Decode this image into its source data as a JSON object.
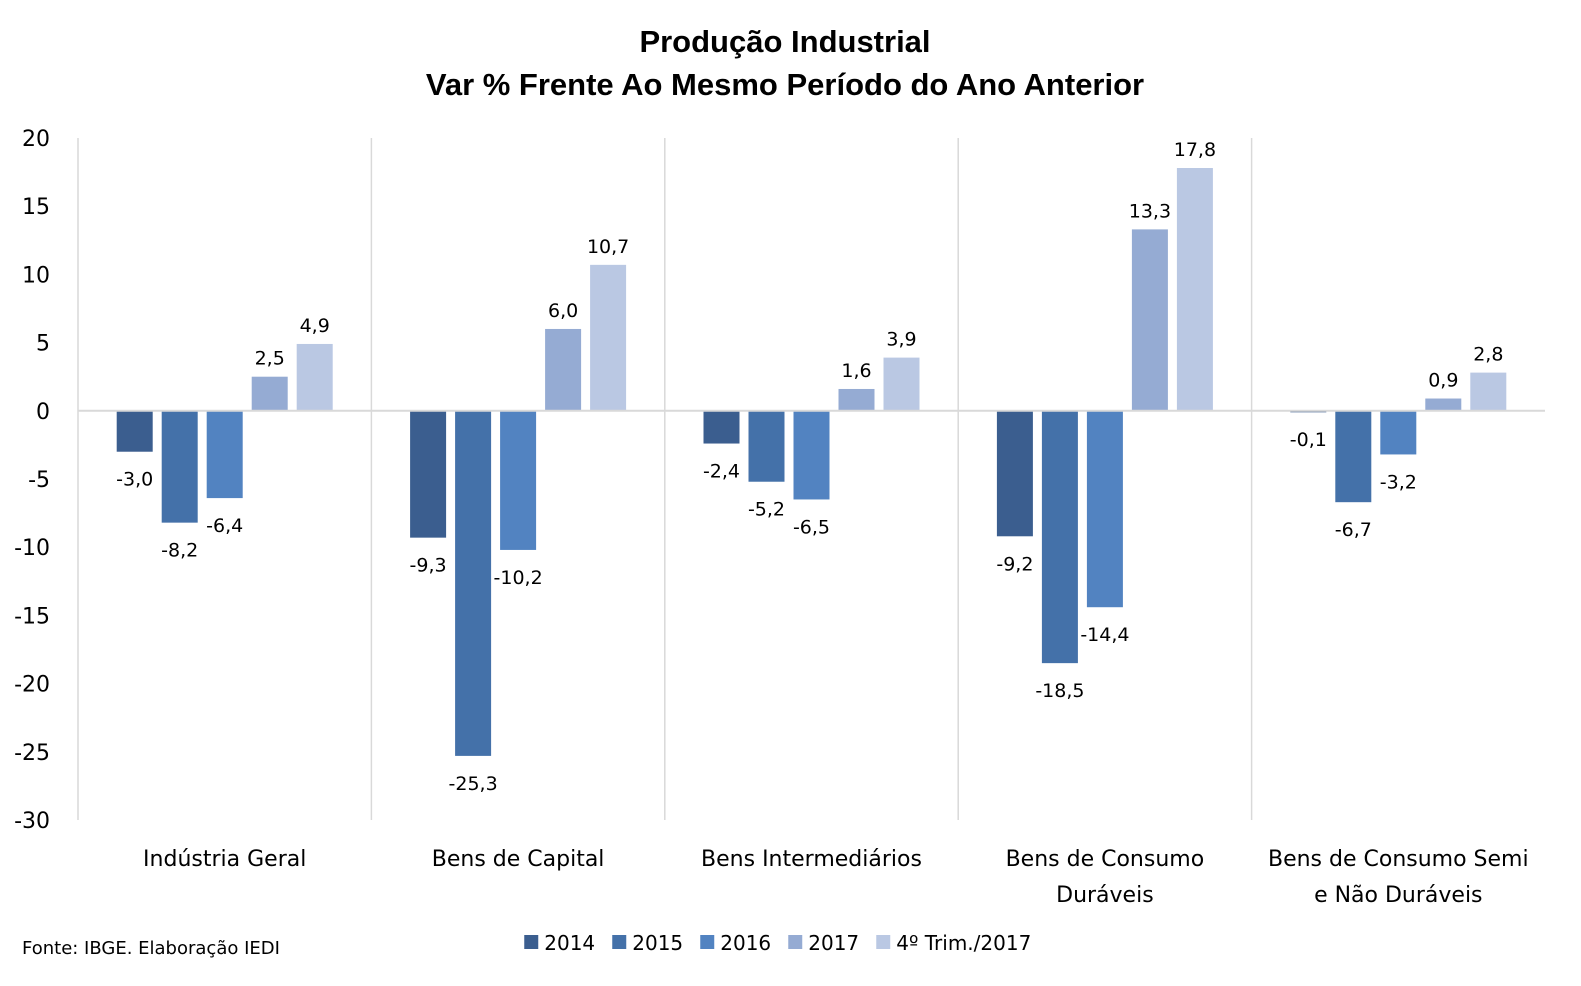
{
  "chart_data": {
    "type": "bar",
    "title_line1": "Produção Industrial",
    "title_line2": "Var % Frente Ao Mesmo Período do Ano Anterior",
    "categories": [
      [
        "Indústria Geral"
      ],
      [
        "Bens de Capital"
      ],
      [
        "Bens Intermediários"
      ],
      [
        "Bens de Consumo",
        "Duráveis"
      ],
      [
        "Bens de Consumo Semi",
        "e Não Duráveis"
      ]
    ],
    "series": [
      {
        "name": "2014",
        "color": "#3b5e8f",
        "values": [
          -3.0,
          -9.3,
          -2.4,
          -9.2,
          -0.1
        ],
        "labels": [
          "-3,0",
          "-9,3",
          "-2,4",
          "-9,2",
          "-0,1"
        ]
      },
      {
        "name": "2015",
        "color": "#4471a9",
        "values": [
          -8.2,
          -25.3,
          -5.2,
          -18.5,
          -6.7
        ],
        "labels": [
          "-8,2",
          "-25,3",
          "-5,2",
          "-18,5",
          "-6,7"
        ]
      },
      {
        "name": "2016",
        "color": "#5283c1",
        "values": [
          -6.4,
          -10.2,
          -6.5,
          -14.4,
          -3.2
        ],
        "labels": [
          "-6,4",
          "-10,2",
          "-6,5",
          "-14,4",
          "-3,2"
        ]
      },
      {
        "name": "2017",
        "color": "#95abd3",
        "values": [
          2.5,
          6.0,
          1.6,
          13.3,
          0.9
        ],
        "labels": [
          "2,5",
          "6,0",
          "1,6",
          "13,3",
          "0,9"
        ]
      },
      {
        "name": "4º Trim./2017",
        "color": "#bac8e3",
        "values": [
          4.9,
          10.7,
          3.9,
          17.8,
          2.8
        ],
        "labels": [
          "4,9",
          "10,7",
          "3,9",
          "17,8",
          "2,8"
        ]
      }
    ],
    "ylim": [
      -30,
      20
    ],
    "yticks": [
      20,
      15,
      10,
      5,
      0,
      -5,
      -10,
      -15,
      -20,
      -25,
      -30
    ],
    "legend_position": "bottom",
    "grid": false
  },
  "source": "Fonte: IBGE. Elaboração IEDI"
}
